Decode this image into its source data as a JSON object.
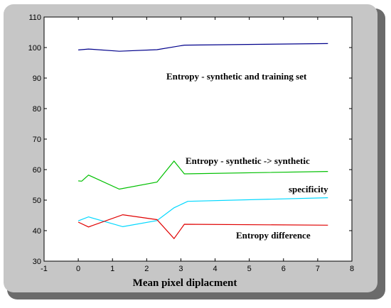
{
  "chart_data": {
    "type": "line",
    "title": "",
    "xlabel": "Mean pixel diplacment",
    "ylabel": "",
    "xlim": [
      -1,
      8
    ],
    "ylim": [
      30,
      110
    ],
    "xticks": [
      "-1",
      "0",
      "1",
      "2",
      "3",
      "4",
      "5",
      "6",
      "7",
      "8"
    ],
    "yticks": [
      "30",
      "40",
      "50",
      "60",
      "70",
      "80",
      "90",
      "100",
      "110"
    ],
    "grid": false,
    "series": [
      {
        "name": "Entropy - synthetic and training set",
        "color": "#00008b",
        "points": [
          [
            0,
            99.2
          ],
          [
            0.3,
            99.5
          ],
          [
            1.2,
            98.8
          ],
          [
            2.3,
            99.3
          ],
          [
            3.1,
            100.8
          ],
          [
            7.3,
            101.3
          ]
        ]
      },
      {
        "name": "Entropy - synthetic -> synthetic",
        "color": "#00c000",
        "points": [
          [
            0,
            56.3
          ],
          [
            0.1,
            56.2
          ],
          [
            0.3,
            58.2
          ],
          [
            1.2,
            53.6
          ],
          [
            2.3,
            55.9
          ],
          [
            2.8,
            62.8
          ],
          [
            3.1,
            58.6
          ],
          [
            7.3,
            59.4
          ]
        ]
      },
      {
        "name": "specificity",
        "color": "#00d8ff",
        "points": [
          [
            0,
            43.2
          ],
          [
            0.3,
            44.5
          ],
          [
            1.3,
            41.3
          ],
          [
            2.3,
            43.3
          ],
          [
            2.8,
            47.5
          ],
          [
            3.2,
            49.6
          ],
          [
            7.3,
            50.8
          ]
        ]
      },
      {
        "name": "Entropy difference",
        "color": "#e00000",
        "points": [
          [
            0,
            42.8
          ],
          [
            0.3,
            41.2
          ],
          [
            1.3,
            45.2
          ],
          [
            2.3,
            43.6
          ],
          [
            2.8,
            37.4
          ],
          [
            3.1,
            42.1
          ],
          [
            7.3,
            41.8
          ]
        ]
      }
    ]
  }
}
